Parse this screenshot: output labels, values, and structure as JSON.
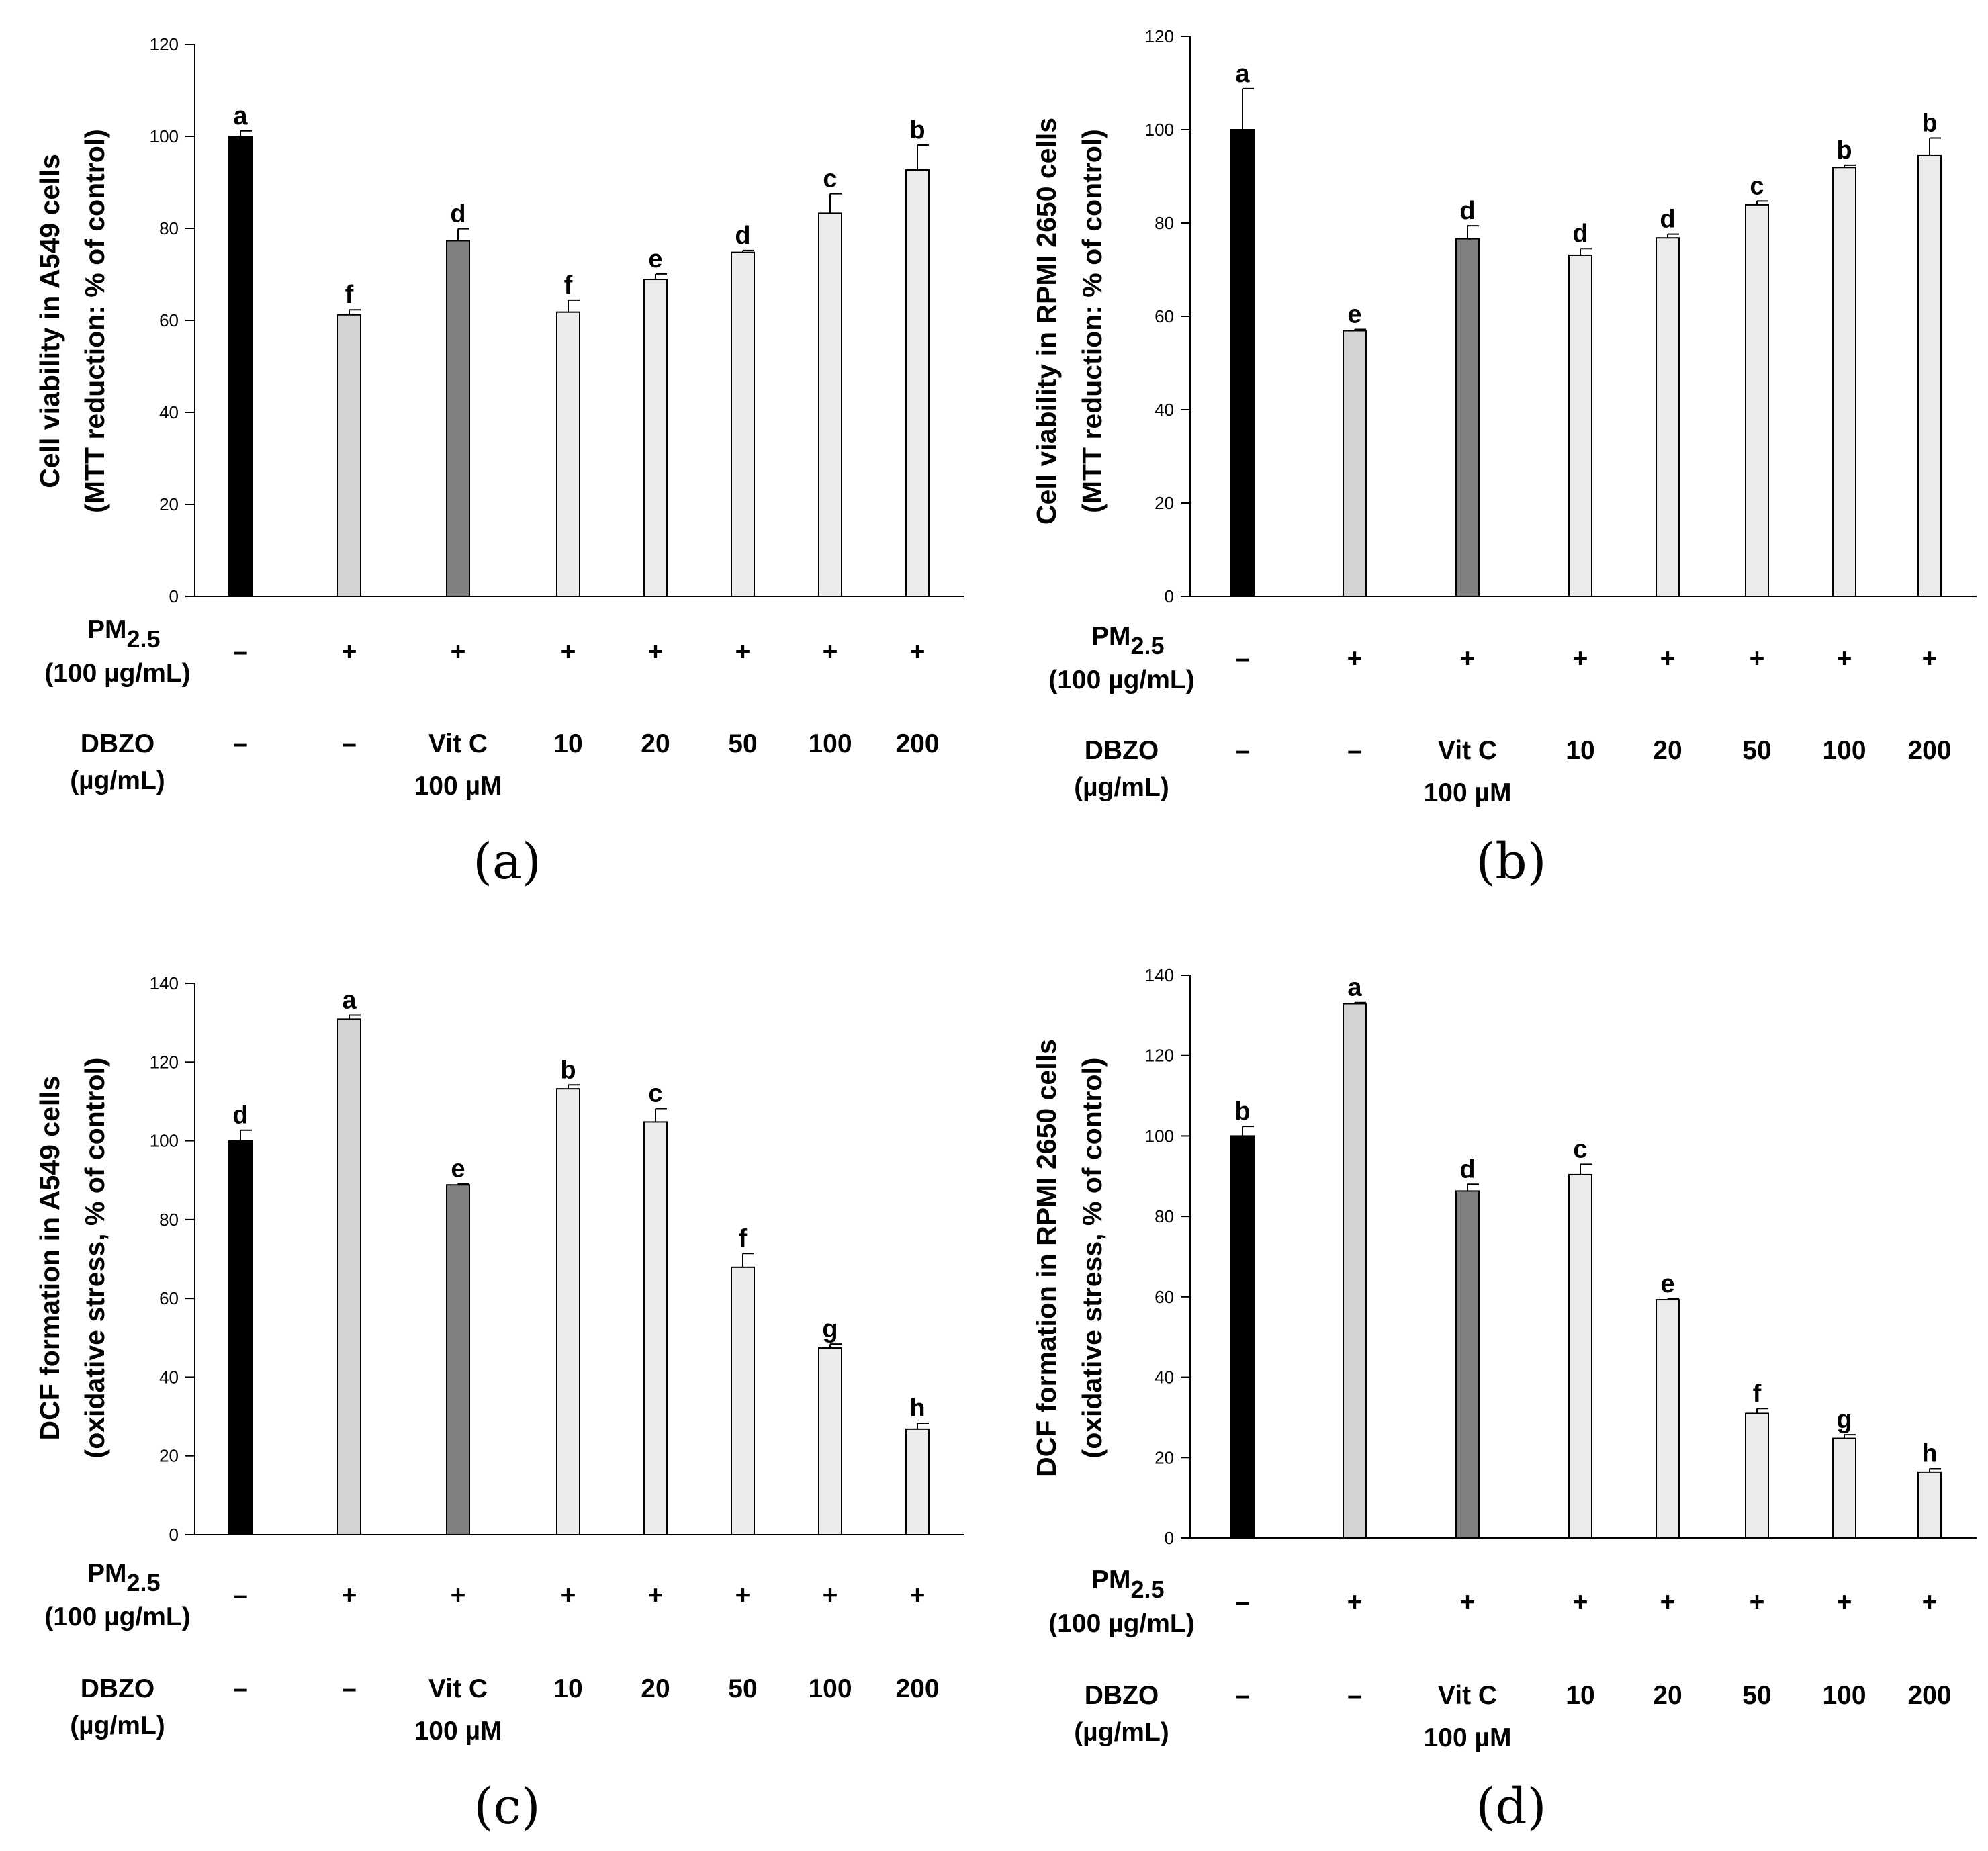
{
  "figure": {
    "row_labels": {
      "pm_title": "PM",
      "pm_subscript": "2.5",
      "pm_conc": "(100 µg/mL)",
      "dbzo_title": "DBZO",
      "dbzo_unit": "(µg/mL)"
    },
    "pm_signs": [
      "–",
      "+",
      "+",
      "+",
      "+",
      "+",
      "+",
      "+"
    ],
    "dbzo_doses": [
      "–",
      "–",
      "Vit C",
      "10",
      "20",
      "50",
      "100",
      "200"
    ],
    "vitc_conc": "100 µM",
    "colors": {
      "control": "#000000",
      "pm_only": "#d3d3d3",
      "vit_c": "#808080",
      "dbzo": "#ececec",
      "outline": "#000000"
    }
  },
  "chart_data": [
    {
      "panel": "a",
      "panel_label": "(a)",
      "type": "bar",
      "ylabel_line1": "Cell viability in A549 cells",
      "ylabel_line2": "(MTT reduction: % of control)",
      "ylim": [
        0,
        120
      ],
      "yticks": [
        "0",
        "20",
        "40",
        "60",
        "80",
        "100",
        "120"
      ],
      "values": [
        100,
        61.2,
        77.3,
        61.8,
        68.9,
        74.8,
        83.3,
        92.7
      ],
      "errors": [
        1.2,
        1.1,
        2.6,
        2.6,
        1.2,
        0.4,
        4.2,
        5.4
      ],
      "letters": [
        "a",
        "f",
        "d",
        "f",
        "e",
        "d",
        "c",
        "b"
      ]
    },
    {
      "panel": "b",
      "panel_label": "(b)",
      "type": "bar",
      "ylabel_line1": "Cell viability in RPMI 2650 cells",
      "ylabel_line2": "(MTT reduction: % of control)",
      "ylim": [
        0,
        120
      ],
      "yticks": [
        "0",
        "20",
        "40",
        "60",
        "80",
        "100",
        "120"
      ],
      "values": [
        100,
        56.9,
        76.6,
        73.1,
        76.8,
        83.9,
        91.9,
        94.4
      ],
      "errors": [
        8.8,
        0.3,
        2.8,
        1.4,
        0.8,
        0.8,
        0.5,
        3.8
      ],
      "letters": [
        "a",
        "e",
        "d",
        "d",
        "d",
        "c",
        "b",
        "b"
      ]
    },
    {
      "panel": "c",
      "panel_label": "(c)",
      "type": "bar",
      "ylabel_line1": "DCF formation in A549 cells",
      "ylabel_line2": "(oxidative stress, % of control)",
      "ylim": [
        0,
        140
      ],
      "yticks": [
        "0",
        "20",
        "40",
        "60",
        "80",
        "100",
        "120",
        "140"
      ],
      "values": [
        100,
        130.9,
        88.8,
        113.2,
        104.8,
        67.9,
        47.4,
        26.8
      ],
      "errors": [
        2.7,
        1.0,
        0.3,
        1.0,
        3.4,
        3.5,
        1.0,
        1.5
      ],
      "letters": [
        "d",
        "a",
        "e",
        "b",
        "c",
        "f",
        "g",
        "h"
      ]
    },
    {
      "panel": "d",
      "panel_label": "(d)",
      "type": "bar",
      "ylabel_line1": "DCF formation in RPMI 2650 cells",
      "ylabel_line2": "(oxidative stress, % of control)",
      "ylim": [
        0,
        140
      ],
      "yticks": [
        "0",
        "20",
        "40",
        "60",
        "80",
        "100",
        "120",
        "140"
      ],
      "values": [
        100,
        132.9,
        86.3,
        90.4,
        59.3,
        31.0,
        24.8,
        16.4
      ],
      "errors": [
        2.4,
        0.3,
        1.7,
        2.6,
        0.2,
        1.2,
        0.9,
        0.9
      ],
      "letters": [
        "b",
        "a",
        "d",
        "c",
        "e",
        "f",
        "g",
        "h"
      ]
    }
  ]
}
